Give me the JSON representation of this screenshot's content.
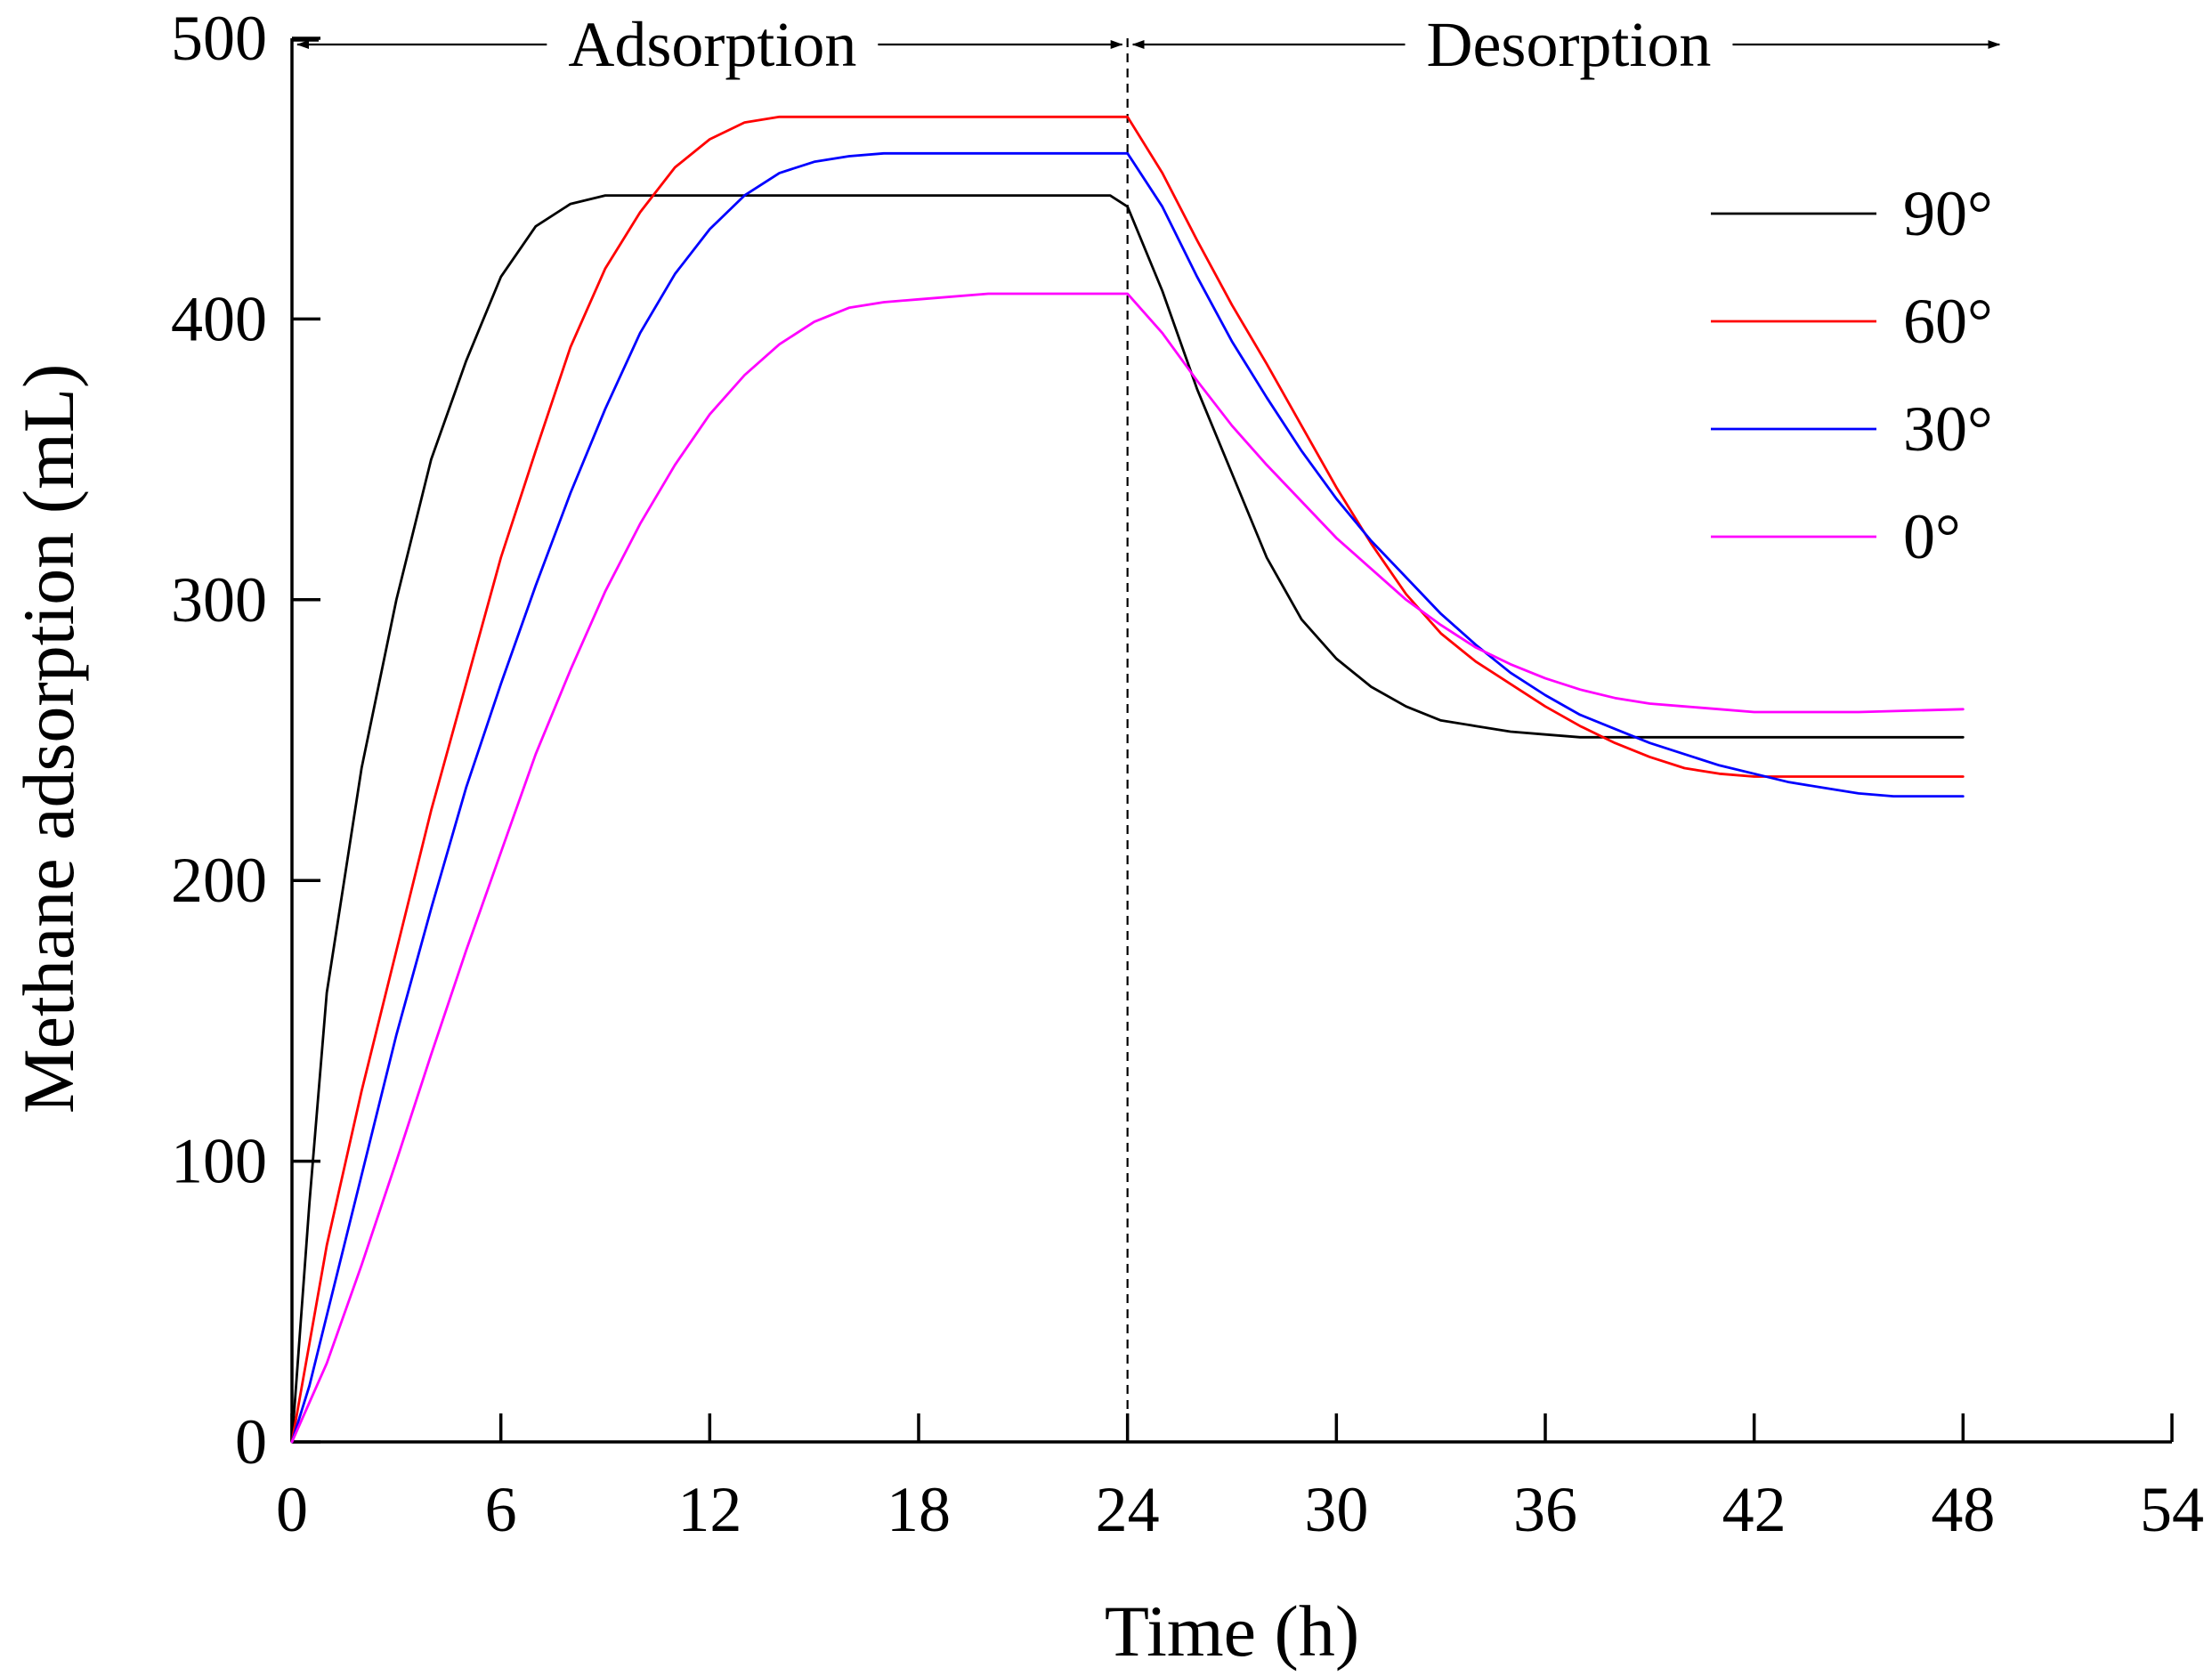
{
  "chart_data": {
    "type": "line",
    "title": "",
    "xlabel": "Time (h)",
    "ylabel": "Methane adsorption (mL)",
    "xlim": [
      0,
      54
    ],
    "ylim": [
      0,
      500
    ],
    "xticks": [
      0,
      6,
      12,
      18,
      24,
      30,
      36,
      42,
      48,
      54
    ],
    "yticks": [
      0,
      100,
      200,
      300,
      400,
      500
    ],
    "xtick_labels": [
      "0",
      "6",
      "12",
      "18",
      "24",
      "30",
      "36",
      "42",
      "48",
      "54"
    ],
    "ytick_labels": [
      "0",
      "100",
      "200",
      "300",
      "400",
      "500"
    ],
    "grid": false,
    "legend_position": "top-right",
    "phase_divider_x": 24,
    "annotations": [
      {
        "text": "Adsorption",
        "x_range": [
          0,
          24
        ],
        "arrow": "both"
      },
      {
        "text": "Desorption",
        "x_range": [
          24,
          49.2
        ],
        "arrow": "both"
      }
    ],
    "series": [
      {
        "name": "90°",
        "color": "#000000",
        "points": [
          [
            0,
            0
          ],
          [
            0.5,
            85
          ],
          [
            1,
            160
          ],
          [
            1.5,
            200
          ],
          [
            2,
            240
          ],
          [
            3,
            300
          ],
          [
            4,
            350
          ],
          [
            5,
            385
          ],
          [
            6,
            415
          ],
          [
            7,
            433
          ],
          [
            8,
            441
          ],
          [
            9,
            444
          ],
          [
            12,
            444
          ],
          [
            18,
            444
          ],
          [
            23.5,
            444
          ],
          [
            24,
            440
          ],
          [
            25,
            410
          ],
          [
            26,
            375
          ],
          [
            27,
            345
          ],
          [
            28,
            315
          ],
          [
            29,
            293
          ],
          [
            30,
            279
          ],
          [
            31,
            269
          ],
          [
            32,
            262
          ],
          [
            33,
            257
          ],
          [
            34,
            255
          ],
          [
            35,
            253
          ],
          [
            36,
            252
          ],
          [
            37,
            251
          ],
          [
            40,
            251
          ],
          [
            44,
            251
          ],
          [
            48,
            251
          ]
        ]
      },
      {
        "name": "60°",
        "color": "#ff0000",
        "points": [
          [
            0,
            0
          ],
          [
            0.5,
            35
          ],
          [
            1,
            70
          ],
          [
            2,
            125
          ],
          [
            3,
            175
          ],
          [
            4,
            225
          ],
          [
            5,
            270
          ],
          [
            6,
            315
          ],
          [
            7,
            353
          ],
          [
            8,
            390
          ],
          [
            9,
            418
          ],
          [
            10,
            438
          ],
          [
            11,
            454
          ],
          [
            12,
            464
          ],
          [
            13,
            470
          ],
          [
            14,
            472
          ],
          [
            18,
            472
          ],
          [
            24,
            472
          ],
          [
            25,
            452
          ],
          [
            26,
            428
          ],
          [
            27,
            405
          ],
          [
            28,
            384
          ],
          [
            29,
            362
          ],
          [
            30,
            340
          ],
          [
            31,
            320
          ],
          [
            32,
            302
          ],
          [
            33,
            288
          ],
          [
            34,
            278
          ],
          [
            35,
            270
          ],
          [
            36,
            262
          ],
          [
            37,
            255
          ],
          [
            38,
            249
          ],
          [
            39,
            244
          ],
          [
            40,
            240
          ],
          [
            41,
            238
          ],
          [
            42,
            237
          ],
          [
            44,
            237
          ],
          [
            48,
            237
          ]
        ]
      },
      {
        "name": "30°",
        "color": "#0000ff",
        "points": [
          [
            0,
            0
          ],
          [
            0.5,
            20
          ],
          [
            1,
            45
          ],
          [
            2,
            95
          ],
          [
            3,
            145
          ],
          [
            4,
            190
          ],
          [
            5,
            233
          ],
          [
            6,
            270
          ],
          [
            7,
            305
          ],
          [
            8,
            338
          ],
          [
            9,
            368
          ],
          [
            10,
            395
          ],
          [
            11,
            416
          ],
          [
            12,
            432
          ],
          [
            13,
            444
          ],
          [
            14,
            452
          ],
          [
            15,
            456
          ],
          [
            16,
            458
          ],
          [
            17,
            459
          ],
          [
            20,
            459
          ],
          [
            24,
            459
          ],
          [
            25,
            440
          ],
          [
            26,
            415
          ],
          [
            27,
            392
          ],
          [
            28,
            372
          ],
          [
            29,
            353
          ],
          [
            30,
            336
          ],
          [
            31,
            321
          ],
          [
            32,
            308
          ],
          [
            33,
            295
          ],
          [
            34,
            284
          ],
          [
            35,
            274
          ],
          [
            36,
            266
          ],
          [
            37,
            259
          ],
          [
            38,
            254
          ],
          [
            39,
            249
          ],
          [
            40,
            245
          ],
          [
            41,
            241
          ],
          [
            42,
            238
          ],
          [
            43,
            235
          ],
          [
            44,
            233
          ],
          [
            45,
            231
          ],
          [
            46,
            230
          ],
          [
            48,
            230
          ]
        ]
      },
      {
        "name": "0°",
        "color": "#ff00ff",
        "points": [
          [
            0,
            0
          ],
          [
            1,
            28
          ],
          [
            2,
            63
          ],
          [
            3,
            100
          ],
          [
            4,
            138
          ],
          [
            5,
            175
          ],
          [
            6,
            210
          ],
          [
            7,
            245
          ],
          [
            8,
            275
          ],
          [
            9,
            303
          ],
          [
            10,
            327
          ],
          [
            11,
            348
          ],
          [
            12,
            366
          ],
          [
            13,
            380
          ],
          [
            14,
            391
          ],
          [
            15,
            399
          ],
          [
            16,
            404
          ],
          [
            17,
            406
          ],
          [
            18,
            407
          ],
          [
            20,
            409
          ],
          [
            24,
            409
          ],
          [
            25,
            395
          ],
          [
            26,
            378
          ],
          [
            27,
            362
          ],
          [
            28,
            348
          ],
          [
            29,
            335
          ],
          [
            30,
            322
          ],
          [
            31,
            311
          ],
          [
            32,
            300
          ],
          [
            33,
            291
          ],
          [
            34,
            283
          ],
          [
            35,
            277
          ],
          [
            36,
            272
          ],
          [
            37,
            268
          ],
          [
            38,
            265
          ],
          [
            39,
            263
          ],
          [
            40,
            262
          ],
          [
            41,
            261
          ],
          [
            42,
            260
          ],
          [
            45,
            260
          ],
          [
            48,
            261
          ]
        ]
      }
    ]
  }
}
